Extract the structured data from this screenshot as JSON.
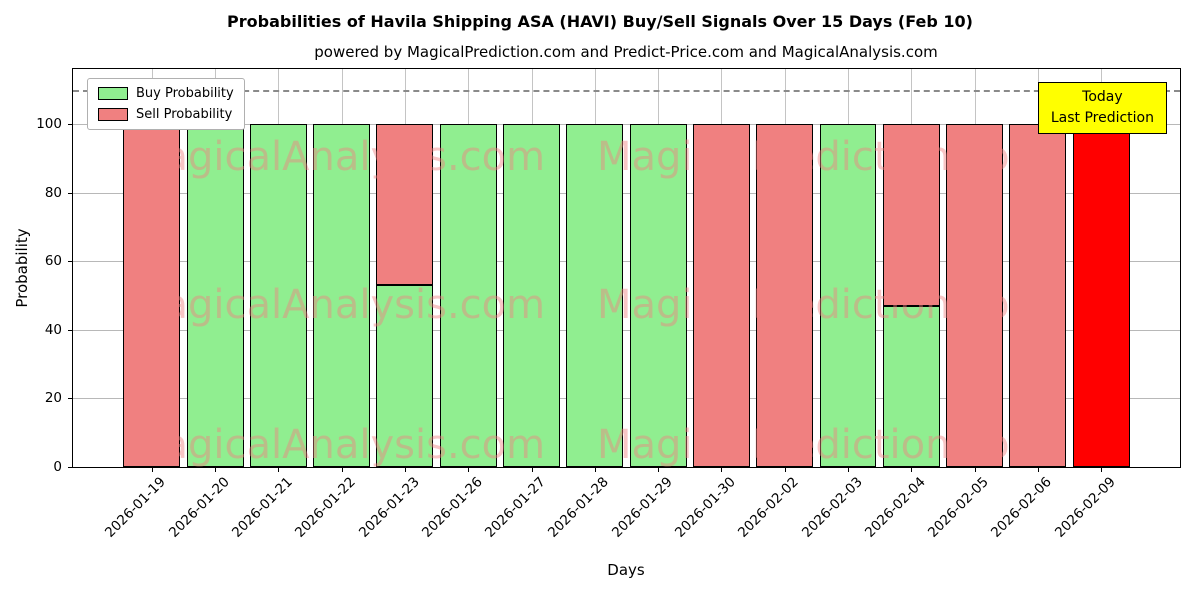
{
  "chart_data": {
    "type": "bar",
    "stacked": true,
    "title": "Probabilities of Havila Shipping ASA (HAVI) Buy/Sell Signals Over 15 Days (Feb 10)",
    "subtitle": "powered by MagicalPrediction.com and Predict-Price.com and MagicalAnalysis.com",
    "xlabel": "Days",
    "ylabel": "Probability",
    "categories": [
      "2026-01-19",
      "2026-01-20",
      "2026-01-21",
      "2026-01-22",
      "2026-01-23",
      "2026-01-26",
      "2026-01-27",
      "2026-01-28",
      "2026-01-29",
      "2026-01-30",
      "2026-02-02",
      "2026-02-03",
      "2026-02-04",
      "2026-02-05",
      "2026-02-06",
      "2026-02-09"
    ],
    "series": [
      {
        "name": "Buy Probability",
        "color": "#90EE90",
        "values": [
          0,
          100,
          100,
          100,
          53,
          100,
          100,
          100,
          100,
          0,
          0,
          100,
          47,
          0,
          0,
          0
        ]
      },
      {
        "name": "Sell Probability",
        "color": "#F08080",
        "values": [
          100,
          0,
          0,
          0,
          47,
          0,
          0,
          0,
          0,
          100,
          100,
          0,
          53,
          100,
          100,
          100
        ]
      }
    ],
    "last_bar_color": "#FF0000",
    "ylim": [
      0,
      116
    ],
    "yticks": [
      0,
      20,
      40,
      60,
      80,
      100
    ],
    "dashed_line_y": 110,
    "grid": true,
    "legend_position": "upper-left"
  },
  "annotation": {
    "line1": "Today",
    "line2": "Last Prediction",
    "bg": "#FFFF00"
  },
  "watermarks": {
    "left": "MagicalAnalysis.com",
    "right": "Magica Prediction.com"
  }
}
